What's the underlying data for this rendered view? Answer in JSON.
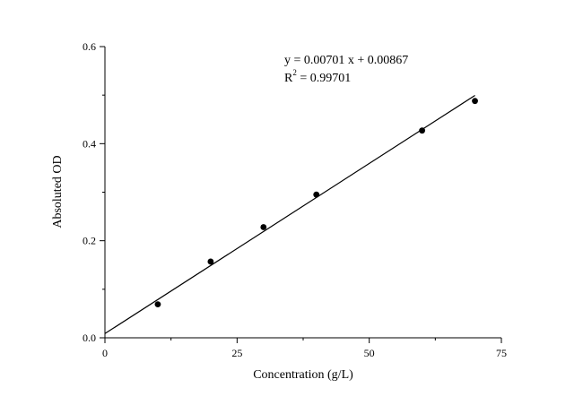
{
  "chart_data": {
    "type": "scatter",
    "title": "",
    "xlabel": "Concentration (g/L)",
    "ylabel": "Absoluted OD",
    "xlim": [
      0,
      75
    ],
    "ylim": [
      0,
      0.6
    ],
    "x_ticks": [
      0,
      25,
      50,
      75
    ],
    "x_tick_labels": [
      "0",
      "25",
      "50",
      "75"
    ],
    "y_ticks": [
      0.0,
      0.2,
      0.4,
      0.6
    ],
    "y_tick_labels": [
      "0.0",
      "0.2",
      "0.4",
      "0.6"
    ],
    "grid": false,
    "series": [
      {
        "x": [
          10,
          20,
          30,
          40,
          60,
          70
        ],
        "y": [
          0.069,
          0.157,
          0.228,
          0.295,
          0.427,
          0.488
        ],
        "color": "#000000"
      }
    ],
    "fit_line": {
      "slope": 0.00701,
      "intercept": 0.00867,
      "x_range": [
        0,
        70
      ],
      "color": "#000000"
    },
    "annotations": {
      "equation": "y = 0.00701 x + 0.00867",
      "r2_prefix": "R",
      "r2_exponent": "2",
      "r2_value": " = 0.99701"
    }
  }
}
